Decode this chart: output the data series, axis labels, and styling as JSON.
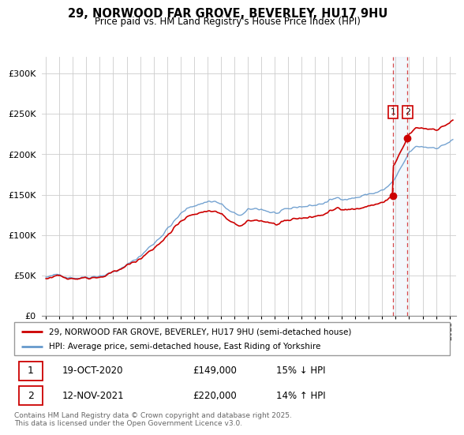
{
  "title": "29, NORWOOD FAR GROVE, BEVERLEY, HU17 9HU",
  "subtitle": "Price paid vs. HM Land Registry's House Price Index (HPI)",
  "legend_line1": "29, NORWOOD FAR GROVE, BEVERLEY, HU17 9HU (semi-detached house)",
  "legend_line2": "HPI: Average price, semi-detached house, East Riding of Yorkshire",
  "footer": "Contains HM Land Registry data © Crown copyright and database right 2025.\nThis data is licensed under the Open Government Licence v3.0.",
  "hpi_color": "#6699cc",
  "price_color": "#cc0000",
  "marker1_year": 2020.8,
  "marker1_y": 149000,
  "marker2_year": 2021.875,
  "marker2_y": 220000,
  "vline1_x": 2020.8,
  "vline2_x": 2021.875,
  "ylim": [
    0,
    320000
  ],
  "xlim_start": 1994.7,
  "xlim_end": 2025.5,
  "yticks": [
    0,
    50000,
    100000,
    150000,
    200000,
    250000,
    300000
  ],
  "xticks": [
    1995,
    1996,
    1997,
    1998,
    1999,
    2000,
    2001,
    2002,
    2003,
    2004,
    2005,
    2006,
    2007,
    2008,
    2009,
    2010,
    2011,
    2012,
    2013,
    2014,
    2015,
    2016,
    2017,
    2018,
    2019,
    2020,
    2021,
    2022,
    2023,
    2024,
    2025
  ],
  "background_color": "#ffffff",
  "grid_color": "#cccccc"
}
